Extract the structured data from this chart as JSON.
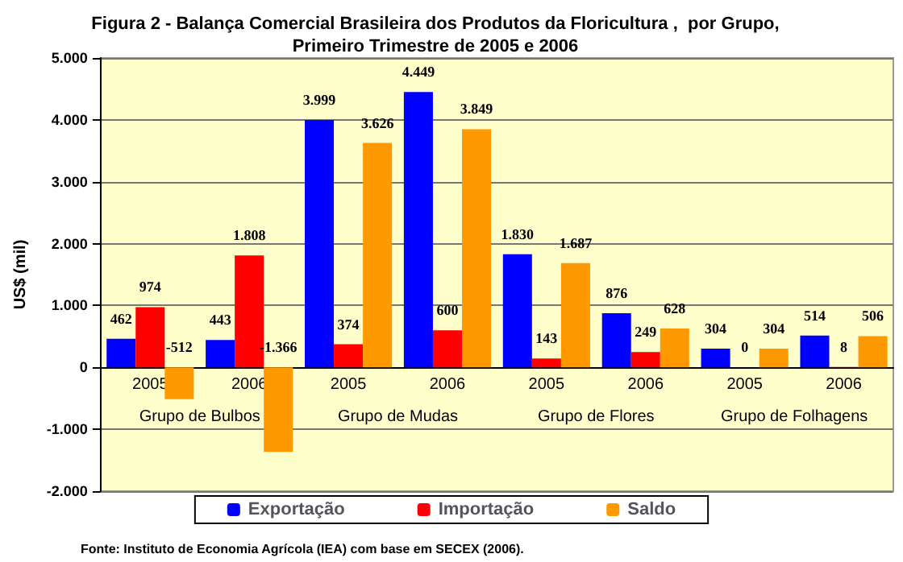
{
  "chart_data": {
    "type": "bar",
    "title": "Figura 2 - Balança Comercial Brasileira dos Produtos da Floricultura ,  por Grupo,\nPrimeiro Trimestre de 2005 e 2006",
    "ylabel": "US$ (mil)",
    "categories": [
      "2005",
      "2006",
      "2005",
      "2006",
      "2005",
      "2006",
      "2005",
      "2006"
    ],
    "series": [
      {
        "name": "Exportação",
        "color": "#0000ff",
        "values": [
          462,
          443,
          3999,
          4449,
          1830,
          876,
          304,
          514
        ],
        "value_labels": [
          "462",
          "443",
          "3.999",
          "4.449",
          "1.830",
          "876",
          "304",
          "514"
        ]
      },
      {
        "name": "Importação",
        "color": "#ff0000",
        "values": [
          974,
          1808,
          374,
          600,
          143,
          249,
          0,
          8
        ],
        "value_labels": [
          "974",
          "1.808",
          "374",
          "600",
          "143",
          "249",
          "0",
          "8"
        ]
      },
      {
        "name": "Saldo",
        "color": "#ff9900",
        "values": [
          -512,
          -1366,
          3626,
          3849,
          1687,
          628,
          304,
          506
        ],
        "value_labels": [
          "-512",
          "-1.366",
          "3.626",
          "3.849",
          "1.687",
          "628",
          "304",
          "506"
        ]
      }
    ],
    "ylim": [
      -2000,
      5000
    ],
    "yticks": [
      {
        "value": -2000,
        "label": "-2.000"
      },
      {
        "value": -1000,
        "label": "-1.000"
      },
      {
        "value": 0,
        "label": "0"
      },
      {
        "value": 1000,
        "label": "1.000"
      },
      {
        "value": 2000,
        "label": "2.000"
      },
      {
        "value": 3000,
        "label": "3.000"
      },
      {
        "value": 4000,
        "label": "4.000"
      },
      {
        "value": 5000,
        "label": "5.000"
      }
    ],
    "grid": "y",
    "legend": "bottom",
    "annotations": [
      "Grupo de Bulbos",
      "Grupo de Mudas",
      "Grupo de Flores",
      "Grupo de Folhagens",
      "Fonte: Instituto de Economia Agrícola (IEA) com base em SECEX (2006)."
    ]
  }
}
